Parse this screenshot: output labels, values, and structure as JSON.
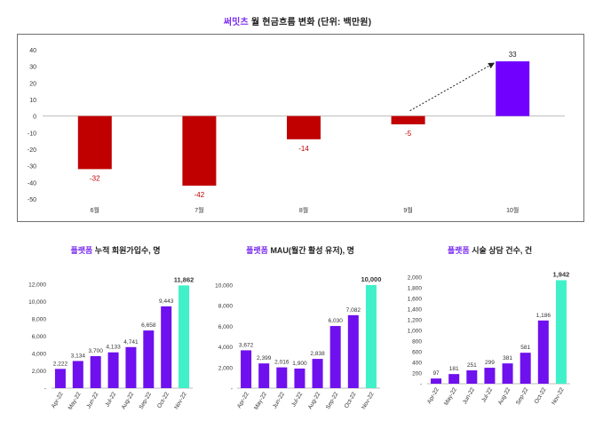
{
  "header": {
    "title_brand": "써밋츠",
    "title_rest": " 월 현금흐름 변화 (단위: 백만원)"
  },
  "colors": {
    "negative": "#c00000",
    "positive": "#7100ff",
    "highlight": "#3ff0c8",
    "purple_bar": "#6f10ee"
  },
  "panels": [
    {
      "brand": "플랫폼",
      "rest": " 누적 회원가입수, 명"
    },
    {
      "brand": "플랫폼",
      "rest": " MAU(월간 활성 유저), 명"
    },
    {
      "brand": "플랫폼",
      "rest": " 시술 상담 건수, 건"
    }
  ],
  "chart_data": [
    {
      "type": "bar",
      "title": "써밋츠 월 현금흐름 변화 (단위: 백만원)",
      "categories": [
        "6월",
        "7월",
        "8월",
        "9월",
        "10월"
      ],
      "values": [
        -32,
        -42,
        -14,
        -5,
        33
      ],
      "value_labels": [
        "-32",
        "-42",
        "-14",
        "-5",
        "33"
      ],
      "ylim": [
        -50,
        40
      ],
      "yticks": [
        "40",
        "30",
        "20",
        "10",
        "0",
        "-10",
        "-20",
        "-30",
        "-40",
        "-50"
      ],
      "annotation": "dotted arrow from 9월 to 10월"
    },
    {
      "type": "bar",
      "title": "플랫폼 누적 회원가입수, 명",
      "categories": [
        "Apr-22",
        "May-22",
        "Jun-22",
        "Jul-22",
        "Aug-22",
        "Sep-22",
        "Oct-22",
        "Nov-22"
      ],
      "values": [
        2222,
        3134,
        3700,
        4133,
        4741,
        6658,
        9443,
        11862
      ],
      "value_labels": [
        "2,222",
        "3,134",
        "3,700",
        "4,133",
        "4,741",
        "6,658",
        "9,443",
        "11,862"
      ],
      "ylim": [
        0,
        12000
      ],
      "yticks": [
        "12,000",
        "10,000",
        "8,000",
        "6,000",
        "4,000",
        "2,000",
        "-"
      ],
      "highlight_last": true
    },
    {
      "type": "bar",
      "title": "플랫폼 MAU(월간 활성 유저), 명",
      "categories": [
        "Apr-22",
        "May-22",
        "Jun-22",
        "Jul-22",
        "Aug-22",
        "Sep-22",
        "Oct-22",
        "Nov-22"
      ],
      "values": [
        3672,
        2399,
        2016,
        1900,
        2838,
        6030,
        7082,
        10000
      ],
      "value_labels": [
        "3,672",
        "2,399",
        "2,016",
        "1,900",
        "2,838",
        "6,030",
        "7,082",
        "10,000"
      ],
      "ylim": [
        0,
        10000
      ],
      "yticks": [
        "10,000",
        "8,000",
        "6,000",
        "4,000",
        "2,000",
        "-"
      ],
      "highlight_last": true
    },
    {
      "type": "bar",
      "title": "플랫폼 시술 상담 건수, 건",
      "categories": [
        "Apr-22",
        "May-22",
        "Jun-22",
        "Jul-22",
        "Aug-22",
        "Sep-22",
        "Oct-22",
        "Nov-22"
      ],
      "values": [
        97,
        181,
        251,
        299,
        381,
        581,
        1186,
        1942
      ],
      "value_labels": [
        "97",
        "181",
        "251",
        "299",
        "381",
        "581",
        "1,186",
        "1,942"
      ],
      "ylim": [
        0,
        2000
      ],
      "yticks": [
        "2,000",
        "1,800",
        "1,600",
        "1,400",
        "1,200",
        "1,000",
        "800",
        "600",
        "400",
        "200",
        "-"
      ],
      "highlight_last": true
    }
  ]
}
